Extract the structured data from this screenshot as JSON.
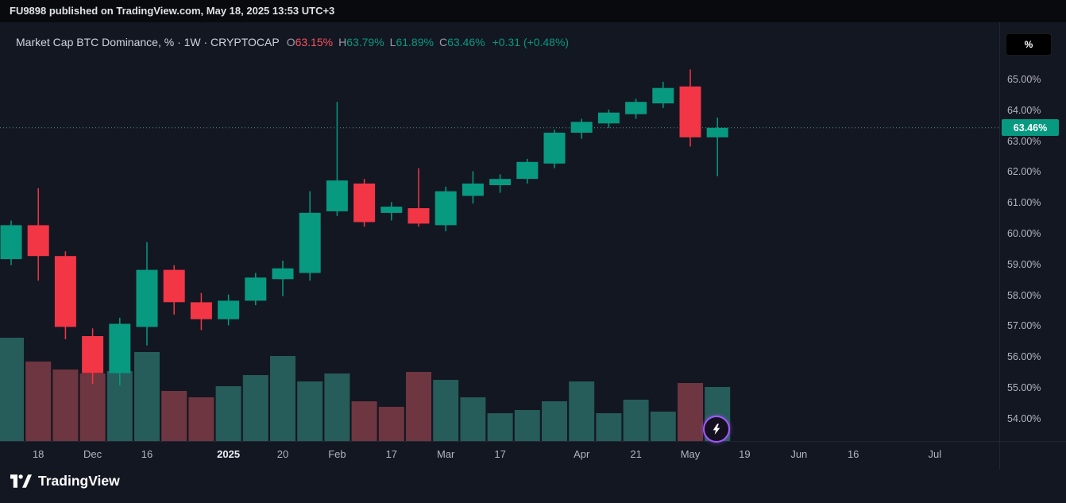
{
  "topbar": {
    "text": "FU9898 published on TradingView.com, May 18, 2025 13:53 UTC+3"
  },
  "legend": {
    "title": "Market Cap BTC Dominance, % · 1W · CRYPTOCAP",
    "ohlc": [
      {
        "label": "O",
        "value": "63.15%",
        "color": "#f7525f"
      },
      {
        "label": "H",
        "value": "63.79%",
        "color": "#089981"
      },
      {
        "label": "L",
        "value": "61.89%",
        "color": "#089981"
      },
      {
        "label": "C",
        "value": "63.46%",
        "color": "#089981"
      }
    ],
    "change": "+0.31 (+0.48%)",
    "change_color": "#089981"
  },
  "price_scale": {
    "unit_button": "%",
    "last_price_label": "63.46%",
    "ticks": [
      {
        "label": "65.00%",
        "value": 65
      },
      {
        "label": "64.00%",
        "value": 64
      },
      {
        "label": "63.00%",
        "value": 63
      },
      {
        "label": "62.00%",
        "value": 62
      },
      {
        "label": "61.00%",
        "value": 61
      },
      {
        "label": "60.00%",
        "value": 60
      },
      {
        "label": "59.00%",
        "value": 59
      },
      {
        "label": "58.00%",
        "value": 58
      },
      {
        "label": "57.00%",
        "value": 57
      },
      {
        "label": "56.00%",
        "value": 56
      },
      {
        "label": "55.00%",
        "value": 55
      },
      {
        "label": "54.00%",
        "value": 54
      }
    ]
  },
  "time_scale": {
    "labels": [
      {
        "t": "18",
        "i": 1
      },
      {
        "t": "Dec",
        "i": 3
      },
      {
        "t": "16",
        "i": 5
      },
      {
        "t": "2025",
        "i": 8,
        "strong": true
      },
      {
        "t": "20",
        "i": 10
      },
      {
        "t": "Feb",
        "i": 12
      },
      {
        "t": "17",
        "i": 14
      },
      {
        "t": "Mar",
        "i": 16
      },
      {
        "t": "17",
        "i": 18
      },
      {
        "t": "Apr",
        "i": 21
      },
      {
        "t": "21",
        "i": 23
      },
      {
        "t": "May",
        "i": 25
      },
      {
        "t": "19",
        "i": 27
      },
      {
        "t": "Jun",
        "i": 29
      },
      {
        "t": "16",
        "i": 31
      },
      {
        "t": "Jul",
        "i": 34
      }
    ]
  },
  "footer": {
    "brand": "TradingView"
  },
  "chart_data": {
    "type": "candlestick",
    "title": "Market Cap BTC Dominance, % · 1W · CRYPTOCAP",
    "symbol": "CRYPTOCAP",
    "interval": "1W",
    "unit": "%",
    "last_price": 63.46,
    "ohlc_current": {
      "open": 63.15,
      "high": 63.79,
      "low": 61.89,
      "close": 63.46,
      "change": 0.31,
      "change_pct": 0.48
    },
    "y_axis": {
      "min": 53.4,
      "max": 65.9,
      "tick_step": 1,
      "grid": false,
      "side": "right"
    },
    "colors": {
      "up": "#089981",
      "down": "#f23645",
      "vol_up": "#265c59",
      "vol_down": "#6e3640",
      "last_line": "#5e8c85",
      "label_bg": "#089981"
    },
    "candles": [
      {
        "o": 59.2,
        "h": 60.45,
        "l": 59.0,
        "c": 60.3
      },
      {
        "o": 60.3,
        "h": 61.5,
        "l": 58.5,
        "c": 59.3
      },
      {
        "o": 59.3,
        "h": 59.45,
        "l": 56.6,
        "c": 57.0
      },
      {
        "o": 56.7,
        "h": 56.95,
        "l": 55.15,
        "c": 55.5
      },
      {
        "o": 55.5,
        "h": 57.3,
        "l": 55.1,
        "c": 57.1
      },
      {
        "o": 57.0,
        "h": 59.75,
        "l": 56.4,
        "c": 58.85
      },
      {
        "o": 58.85,
        "h": 59.0,
        "l": 57.4,
        "c": 57.8
      },
      {
        "o": 57.8,
        "h": 58.1,
        "l": 56.9,
        "c": 57.25
      },
      {
        "o": 57.25,
        "h": 58.05,
        "l": 57.05,
        "c": 57.85
      },
      {
        "o": 57.85,
        "h": 58.75,
        "l": 57.7,
        "c": 58.6
      },
      {
        "o": 58.55,
        "h": 59.15,
        "l": 58.0,
        "c": 58.9
      },
      {
        "o": 58.75,
        "h": 61.4,
        "l": 58.5,
        "c": 60.7
      },
      {
        "o": 60.75,
        "h": 64.3,
        "l": 60.6,
        "c": 61.75
      },
      {
        "o": 61.65,
        "h": 61.8,
        "l": 60.25,
        "c": 60.4
      },
      {
        "o": 60.7,
        "h": 61.05,
        "l": 60.45,
        "c": 60.9
      },
      {
        "o": 60.85,
        "h": 62.15,
        "l": 60.25,
        "c": 60.35
      },
      {
        "o": 60.3,
        "h": 61.55,
        "l": 60.1,
        "c": 61.4
      },
      {
        "o": 61.25,
        "h": 62.05,
        "l": 61.0,
        "c": 61.65
      },
      {
        "o": 61.6,
        "h": 61.95,
        "l": 61.35,
        "c": 61.8
      },
      {
        "o": 61.8,
        "h": 62.45,
        "l": 61.65,
        "c": 62.35
      },
      {
        "o": 62.3,
        "h": 63.4,
        "l": 62.15,
        "c": 63.3
      },
      {
        "o": 63.3,
        "h": 63.75,
        "l": 63.1,
        "c": 63.65
      },
      {
        "o": 63.6,
        "h": 64.05,
        "l": 63.45,
        "c": 63.95
      },
      {
        "o": 63.9,
        "h": 64.4,
        "l": 63.75,
        "c": 64.3
      },
      {
        "o": 64.25,
        "h": 64.95,
        "l": 64.1,
        "c": 64.75
      },
      {
        "o": 64.8,
        "h": 65.35,
        "l": 62.85,
        "c": 63.15
      },
      {
        "o": 63.15,
        "h": 63.79,
        "l": 61.89,
        "c": 63.46
      }
    ],
    "volumes": [
      {
        "h": 130,
        "d": "up"
      },
      {
        "h": 100,
        "d": "down"
      },
      {
        "h": 90,
        "d": "down"
      },
      {
        "h": 85,
        "d": "down"
      },
      {
        "h": 88,
        "d": "up"
      },
      {
        "h": 112,
        "d": "up"
      },
      {
        "h": 63,
        "d": "down"
      },
      {
        "h": 55,
        "d": "down"
      },
      {
        "h": 69,
        "d": "up"
      },
      {
        "h": 83,
        "d": "up"
      },
      {
        "h": 107,
        "d": "up"
      },
      {
        "h": 75,
        "d": "up"
      },
      {
        "h": 85,
        "d": "up"
      },
      {
        "h": 50,
        "d": "down"
      },
      {
        "h": 43,
        "d": "down"
      },
      {
        "h": 87,
        "d": "down"
      },
      {
        "h": 77,
        "d": "up"
      },
      {
        "h": 55,
        "d": "up"
      },
      {
        "h": 35,
        "d": "up"
      },
      {
        "h": 39,
        "d": "up"
      },
      {
        "h": 50,
        "d": "up"
      },
      {
        "h": 75,
        "d": "up"
      },
      {
        "h": 35,
        "d": "up"
      },
      {
        "h": 52,
        "d": "up"
      },
      {
        "h": 37,
        "d": "up"
      },
      {
        "h": 73,
        "d": "down"
      },
      {
        "h": 68,
        "d": "up"
      }
    ]
  }
}
